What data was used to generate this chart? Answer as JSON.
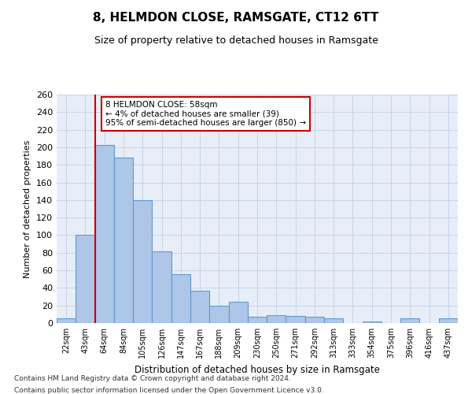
{
  "title": "8, HELMDON CLOSE, RAMSGATE, CT12 6TT",
  "subtitle": "Size of property relative to detached houses in Ramsgate",
  "xlabel": "Distribution of detached houses by size in Ramsgate",
  "ylabel": "Number of detached properties",
  "categories": [
    "22sqm",
    "43sqm",
    "64sqm",
    "84sqm",
    "105sqm",
    "126sqm",
    "147sqm",
    "167sqm",
    "188sqm",
    "209sqm",
    "230sqm",
    "250sqm",
    "271sqm",
    "292sqm",
    "313sqm",
    "333sqm",
    "354sqm",
    "375sqm",
    "396sqm",
    "416sqm",
    "437sqm"
  ],
  "values": [
    5,
    100,
    203,
    188,
    140,
    82,
    56,
    37,
    20,
    24,
    7,
    9,
    8,
    7,
    5,
    0,
    2,
    0,
    5,
    0,
    5
  ],
  "bar_color": "#aec6e8",
  "bar_edge_color": "#5b9bd5",
  "red_line_index": 2,
  "annotation_line1": "8 HELMDON CLOSE: 58sqm",
  "annotation_line2": "← 4% of detached houses are smaller (39)",
  "annotation_line3": "95% of semi-detached houses are larger (850) →",
  "annotation_box_color": "#ffffff",
  "annotation_box_edge": "#cc0000",
  "ylim": [
    0,
    260
  ],
  "yticks": [
    0,
    20,
    40,
    60,
    80,
    100,
    120,
    140,
    160,
    180,
    200,
    220,
    240,
    260
  ],
  "grid_color": "#c8d4e8",
  "footer_line1": "Contains HM Land Registry data © Crown copyright and database right 2024.",
  "footer_line2": "Contains public sector information licensed under the Open Government Licence v3.0.",
  "background_color": "#e8eef8",
  "fig_background": "#ffffff",
  "title_fontsize": 11,
  "subtitle_fontsize": 9
}
